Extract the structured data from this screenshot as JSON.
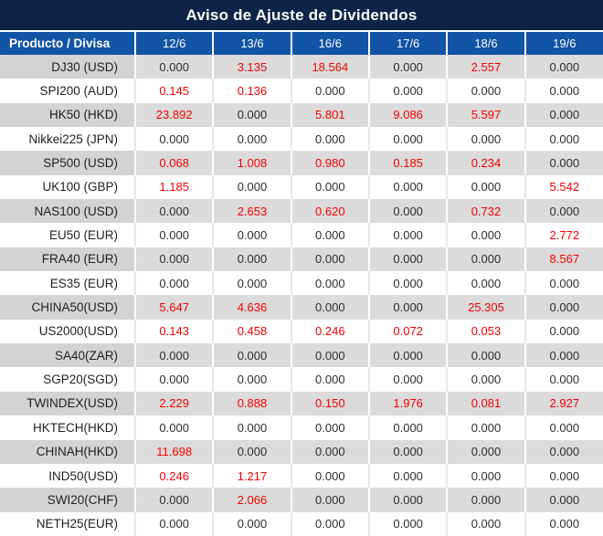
{
  "title": "Aviso de Ajuste de Dividendos",
  "table": {
    "product_column_label": "Producto / Divisa",
    "date_columns": [
      "12/6",
      "13/6",
      "16/6",
      "17/6",
      "18/6",
      "19/6"
    ],
    "rows": [
      {
        "product": "DJ30 (USD)",
        "values": [
          "0.000",
          "3.135",
          "18.564",
          "0.000",
          "2.557",
          "0.000"
        ]
      },
      {
        "product": "SPI200 (AUD)",
        "values": [
          "0.145",
          "0.136",
          "0.000",
          "0.000",
          "0.000",
          "0.000"
        ]
      },
      {
        "product": "HK50 (HKD)",
        "values": [
          "23.892",
          "0.000",
          "5.801",
          "9.086",
          "5.597",
          "0.000"
        ]
      },
      {
        "product": "Nikkei225 (JPN)",
        "values": [
          "0.000",
          "0.000",
          "0.000",
          "0.000",
          "0.000",
          "0.000"
        ]
      },
      {
        "product": "SP500 (USD)",
        "values": [
          "0.068",
          "1.008",
          "0.980",
          "0.185",
          "0.234",
          "0.000"
        ]
      },
      {
        "product": "UK100 (GBP)",
        "values": [
          "1.185",
          "0.000",
          "0.000",
          "0.000",
          "0.000",
          "5.542"
        ]
      },
      {
        "product": "NAS100 (USD)",
        "values": [
          "0.000",
          "2.653",
          "0.620",
          "0.000",
          "0.732",
          "0.000"
        ]
      },
      {
        "product": "EU50 (EUR)",
        "values": [
          "0.000",
          "0.000",
          "0.000",
          "0.000",
          "0.000",
          "2.772"
        ]
      },
      {
        "product": "FRA40 (EUR)",
        "values": [
          "0.000",
          "0.000",
          "0.000",
          "0.000",
          "0.000",
          "8.567"
        ]
      },
      {
        "product": "ES35 (EUR)",
        "values": [
          "0.000",
          "0.000",
          "0.000",
          "0.000",
          "0.000",
          "0.000"
        ]
      },
      {
        "product": "CHINA50(USD)",
        "values": [
          "5.647",
          "4.636",
          "0.000",
          "0.000",
          "25.305",
          "0.000"
        ]
      },
      {
        "product": "US2000(USD)",
        "values": [
          "0.143",
          "0.458",
          "0.246",
          "0.072",
          "0.053",
          "0.000"
        ]
      },
      {
        "product": "SA40(ZAR)",
        "values": [
          "0.000",
          "0.000",
          "0.000",
          "0.000",
          "0.000",
          "0.000"
        ]
      },
      {
        "product": "SGP20(SGD)",
        "values": [
          "0.000",
          "0.000",
          "0.000",
          "0.000",
          "0.000",
          "0.000"
        ]
      },
      {
        "product": "TWINDEX(USD)",
        "values": [
          "2.229",
          "0.888",
          "0.150",
          "1.976",
          "0.081",
          "2.927"
        ]
      },
      {
        "product": "HKTECH(HKD)",
        "values": [
          "0.000",
          "0.000",
          "0.000",
          "0.000",
          "0.000",
          "0.000"
        ]
      },
      {
        "product": "CHINAH(HKD)",
        "values": [
          "11.698",
          "0.000",
          "0.000",
          "0.000",
          "0.000",
          "0.000"
        ]
      },
      {
        "product": "IND50(USD)",
        "values": [
          "0.246",
          "1.217",
          "0.000",
          "0.000",
          "0.000",
          "0.000"
        ]
      },
      {
        "product": "SWI20(CHF)",
        "values": [
          "0.000",
          "2.066",
          "0.000",
          "0.000",
          "0.000",
          "0.000"
        ]
      },
      {
        "product": "NETH25(EUR)",
        "values": [
          "0.000",
          "0.000",
          "0.000",
          "0.000",
          "0.000",
          "0.000"
        ]
      }
    ]
  },
  "colors": {
    "title_bg": "#0e2347",
    "header_bg": "#1254a6",
    "header_text": "#ffffff",
    "alt_row_bg": "#dbdbdb",
    "alt_row_product_bg": "#d3d3d3",
    "zero_value_color": "#2e2e2e",
    "nonzero_value_color": "#f40000"
  }
}
